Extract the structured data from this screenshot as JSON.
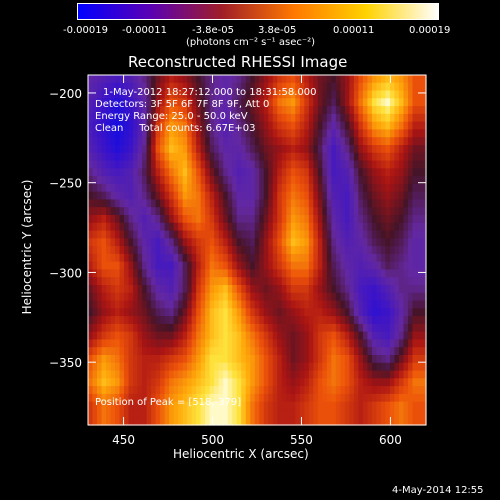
{
  "colorbar": {
    "tick_labels": [
      "-0.00019",
      "-0.00011",
      "-3.8e-05",
      "3.8e-05",
      "0.00011",
      "0.00019"
    ],
    "units_label": "(photons cm⁻² s⁻¹ asec⁻²)",
    "range": [
      -0.00019,
      0.00019
    ],
    "colors": [
      "#0000ff",
      "#5a00b4",
      "#a01e28",
      "#ff7800",
      "#ffd200",
      "#ffffff"
    ]
  },
  "chart_data": {
    "type": "heatmap",
    "title": "Reconstructed RHESSI Image",
    "xlabel": "Heliocentric X (arcsec)",
    "ylabel": "Heliocentric Y (arcsec)",
    "xlim": [
      430,
      620
    ],
    "ylim": [
      -385,
      -190
    ],
    "xticks": [
      450,
      500,
      550,
      600
    ],
    "yticks": [
      -200,
      -250,
      -300,
      -350
    ],
    "xtick_labels": [
      "450",
      "500",
      "550",
      "600"
    ],
    "ytick_labels": [
      "−200",
      "−250",
      "−300",
      "−350"
    ],
    "annotations": {
      "time_range": "1-May-2012 18:27:12.000 to 18:31:58.000",
      "detectors": "Detectors: 3F 5F 6F 7F 8F 9F, Att 0",
      "energy_range": "Energy Range: 25.0 - 50.0 keV",
      "clean_counts": "Clean     Total counts: 6.67E+03",
      "peak_position": "Position of Peak = [518,-379]"
    },
    "peak": [
      518,
      -379
    ],
    "intensity_grid_note": "",
    "intensity": [
      [
        -0.3,
        -0.4,
        -0.5,
        -0.4,
        -0.2,
        0.1,
        0.3,
        0.2,
        0.0,
        -0.2,
        -0.3,
        -0.2,
        0.0,
        0.2,
        0.4,
        0.5,
        0.3,
        0.1,
        0.0,
        0.2,
        0.5,
        0.7,
        0.8,
        0.7,
        0.5
      ],
      [
        -0.4,
        -0.6,
        -0.8,
        -0.6,
        -0.3,
        0.2,
        0.5,
        0.4,
        0.1,
        -0.2,
        -0.3,
        -0.1,
        0.1,
        0.3,
        0.6,
        0.7,
        0.4,
        0.1,
        -0.1,
        0.2,
        0.6,
        0.9,
        1.0,
        0.8,
        0.5
      ],
      [
        -0.5,
        -0.7,
        -0.9,
        -0.7,
        -0.3,
        0.4,
        0.7,
        0.6,
        0.2,
        -0.2,
        -0.4,
        -0.2,
        0.0,
        0.2,
        0.4,
        0.5,
        0.3,
        0.0,
        -0.3,
        0.0,
        0.4,
        0.7,
        0.8,
        0.6,
        0.3
      ],
      [
        -0.4,
        -0.6,
        -0.8,
        -0.6,
        -0.2,
        0.5,
        0.8,
        0.7,
        0.3,
        -0.1,
        -0.3,
        -0.3,
        -0.1,
        0.1,
        0.2,
        0.3,
        0.2,
        -0.1,
        -0.5,
        -0.2,
        0.2,
        0.4,
        0.5,
        0.3,
        0.1
      ],
      [
        -0.2,
        -0.4,
        -0.5,
        -0.4,
        -0.1,
        0.3,
        0.6,
        0.8,
        0.5,
        0.1,
        -0.2,
        -0.4,
        -0.3,
        0.0,
        0.3,
        0.5,
        0.4,
        0.0,
        -0.5,
        -0.4,
        0.0,
        0.2,
        0.3,
        0.2,
        0.0
      ],
      [
        0.0,
        -0.1,
        -0.3,
        -0.4,
        -0.2,
        0.1,
        0.4,
        0.7,
        0.6,
        0.3,
        0.0,
        -0.3,
        -0.3,
        0.0,
        0.4,
        0.6,
        0.5,
        0.1,
        -0.4,
        -0.5,
        -0.1,
        0.1,
        0.2,
        0.1,
        -0.1
      ],
      [
        0.2,
        0.3,
        0.1,
        -0.2,
        -0.4,
        -0.2,
        0.2,
        0.5,
        0.6,
        0.4,
        0.1,
        -0.2,
        -0.2,
        0.1,
        0.4,
        0.7,
        0.6,
        0.2,
        -0.3,
        -0.5,
        -0.2,
        0.0,
        0.1,
        0.0,
        -0.2
      ],
      [
        0.4,
        0.5,
        0.3,
        0.0,
        -0.3,
        -0.5,
        -0.2,
        0.2,
        0.4,
        0.5,
        0.3,
        0.0,
        -0.1,
        0.2,
        0.5,
        0.8,
        0.7,
        0.3,
        -0.2,
        -0.4,
        -0.3,
        -0.1,
        0.0,
        -0.1,
        -0.3
      ],
      [
        0.3,
        0.5,
        0.5,
        0.2,
        -0.2,
        -0.5,
        -0.5,
        -0.1,
        0.3,
        0.6,
        0.5,
        0.2,
        0.0,
        0.2,
        0.4,
        0.6,
        0.6,
        0.3,
        -0.1,
        -0.3,
        -0.4,
        -0.3,
        -0.1,
        -0.2,
        -0.3
      ],
      [
        0.1,
        0.3,
        0.4,
        0.3,
        0.0,
        -0.3,
        -0.4,
        -0.1,
        0.4,
        0.7,
        0.8,
        0.5,
        0.2,
        0.1,
        0.2,
        0.4,
        0.4,
        0.2,
        0.0,
        -0.2,
        -0.5,
        -0.6,
        -0.4,
        -0.2,
        -0.2
      ],
      [
        0.0,
        0.2,
        0.3,
        0.2,
        0.1,
        -0.1,
        -0.2,
        0.1,
        0.5,
        0.8,
        0.9,
        0.7,
        0.4,
        0.2,
        0.1,
        0.2,
        0.3,
        0.3,
        0.2,
        0.0,
        -0.4,
        -0.7,
        -0.6,
        -0.3,
        0.0
      ],
      [
        0.2,
        0.4,
        0.5,
        0.4,
        0.2,
        0.1,
        0.1,
        0.3,
        0.6,
        0.8,
        0.9,
        0.8,
        0.6,
        0.4,
        0.2,
        0.1,
        0.2,
        0.4,
        0.5,
        0.3,
        0.0,
        -0.4,
        -0.5,
        -0.2,
        0.2
      ],
      [
        0.5,
        0.7,
        0.6,
        0.4,
        0.3,
        0.3,
        0.4,
        0.5,
        0.7,
        0.9,
        0.9,
        0.8,
        0.7,
        0.5,
        0.3,
        0.1,
        0.2,
        0.4,
        0.6,
        0.5,
        0.2,
        -0.1,
        -0.2,
        0.1,
        0.4
      ],
      [
        0.6,
        0.8,
        0.7,
        0.4,
        0.3,
        0.4,
        0.6,
        0.7,
        0.8,
        0.9,
        1.0,
        0.9,
        0.7,
        0.5,
        0.3,
        0.2,
        0.3,
        0.5,
        0.6,
        0.5,
        0.3,
        0.2,
        0.2,
        0.4,
        0.6
      ],
      [
        0.4,
        0.6,
        0.5,
        0.3,
        0.3,
        0.5,
        0.7,
        0.8,
        0.9,
        1.0,
        1.0,
        0.9,
        0.6,
        0.4,
        0.3,
        0.3,
        0.4,
        0.5,
        0.5,
        0.4,
        0.3,
        0.4,
        0.5,
        0.6,
        0.5
      ]
    ]
  },
  "footer": {
    "date": "4-May-2014 12:55"
  }
}
